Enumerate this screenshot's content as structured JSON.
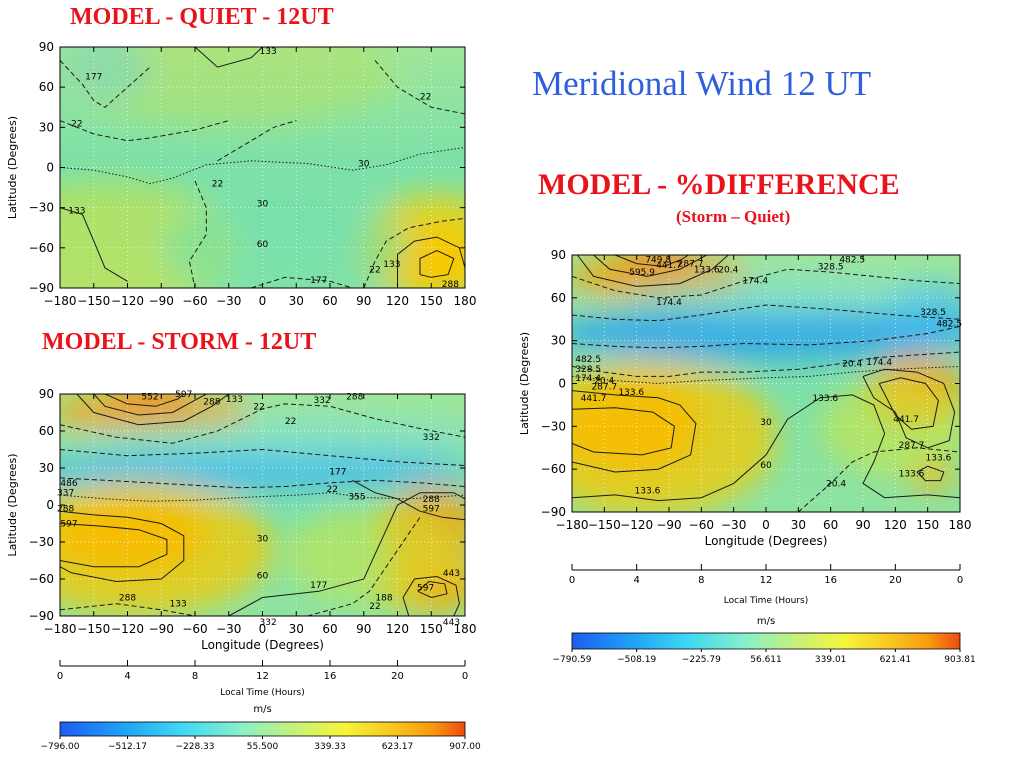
{
  "slide": {
    "main_title": "Meridional Wind   12 UT",
    "quiet_title": "MODEL  -  QUIET  - 12UT",
    "storm_title": "MODEL  -  STORM  - 12UT",
    "diff_title": "MODEL  -  %DIFFERENCE",
    "diff_subtitle": "(Storm – Quiet)"
  },
  "chart_data": [
    {
      "id": "quiet",
      "type": "heatmap",
      "title": "MODEL  -  QUIET  - 12UT",
      "xlabel": "",
      "ylabel": "Latitude (Degrees)",
      "xticks": [
        "−180",
        "−150",
        "−120",
        "−90",
        "−60",
        "−30",
        "0",
        "30",
        "60",
        "90",
        "120",
        "150",
        "180"
      ],
      "yticks": [
        "90",
        "60",
        "30",
        "0",
        "−30",
        "−60",
        "−90"
      ],
      "xlim": [
        -180,
        180
      ],
      "ylim": [
        -90,
        90
      ],
      "contour_labels": [
        {
          "text": "133",
          "lon": 5,
          "lat": 87
        },
        {
          "text": "177",
          "lon": -150,
          "lat": 68
        },
        {
          "text": "22",
          "lon": 145,
          "lat": 53
        },
        {
          "text": "22",
          "lon": -165,
          "lat": 33
        },
        {
          "text": "22",
          "lon": -40,
          "lat": -12
        },
        {
          "text": "133",
          "lon": -165,
          "lat": -32
        },
        {
          "text": "133",
          "lon": 115,
          "lat": -72
        },
        {
          "text": "22",
          "lon": 100,
          "lat": -76
        },
        {
          "text": "177",
          "lon": 50,
          "lat": -84
        },
        {
          "text": "288",
          "lon": 167,
          "lat": -87
        },
        {
          "text": "30",
          "lon": 0,
          "lat": -27
        },
        {
          "text": "60",
          "lon": 0,
          "lat": -57
        },
        {
          "text": "30",
          "lon": 90,
          "lat": 3
        }
      ],
      "axis": {
        "local_time_ticks": [
          "0",
          "4",
          "8",
          "12",
          "16",
          "20",
          "0"
        ],
        "local_time_label": "Local Time (Hours)"
      },
      "colorbar": {
        "unit": "m/s",
        "ticks": [
          "−796.00",
          "−512.17",
          "−228.33",
          "55.500",
          "339.33",
          "623.17",
          "907.00"
        ]
      }
    },
    {
      "id": "storm",
      "type": "heatmap",
      "title": "MODEL  -  STORM  - 12UT",
      "xlabel": "Longitude (Degrees)",
      "ylabel": "Latitude (Degrees)",
      "xticks": [
        "−180",
        "−150",
        "−120",
        "−90",
        "−60",
        "−30",
        "0",
        "30",
        "60",
        "90",
        "120",
        "150",
        "180"
      ],
      "yticks": [
        "90",
        "60",
        "30",
        "0",
        "−30",
        "−60",
        "−90"
      ],
      "xlim": [
        -180,
        180
      ],
      "ylim": [
        -90,
        90
      ],
      "contour_labels": [
        {
          "text": "552",
          "lon": -100,
          "lat": 88
        },
        {
          "text": "597",
          "lon": -70,
          "lat": 90
        },
        {
          "text": "288",
          "lon": -45,
          "lat": 84
        },
        {
          "text": "133",
          "lon": -25,
          "lat": 86
        },
        {
          "text": "22",
          "lon": -3,
          "lat": 80
        },
        {
          "text": "22",
          "lon": 25,
          "lat": 68
        },
        {
          "text": "332",
          "lon": 53,
          "lat": 85
        },
        {
          "text": "288",
          "lon": 82,
          "lat": 88
        },
        {
          "text": "332",
          "lon": 150,
          "lat": 55
        },
        {
          "text": "177",
          "lon": 67,
          "lat": 27
        },
        {
          "text": "22",
          "lon": 62,
          "lat": 13
        },
        {
          "text": "486",
          "lon": -172,
          "lat": 18
        },
        {
          "text": "337",
          "lon": -175,
          "lat": 10
        },
        {
          "text": "288",
          "lon": -175,
          "lat": -3
        },
        {
          "text": "597",
          "lon": -172,
          "lat": -15
        },
        {
          "text": "355",
          "lon": 84,
          "lat": 7
        },
        {
          "text": "288",
          "lon": 150,
          "lat": 5
        },
        {
          "text": "597",
          "lon": 150,
          "lat": -3
        },
        {
          "text": "443",
          "lon": 168,
          "lat": -55
        },
        {
          "text": "177",
          "lon": 50,
          "lat": -65
        },
        {
          "text": "288",
          "lon": -120,
          "lat": -75
        },
        {
          "text": "133",
          "lon": -75,
          "lat": -80
        },
        {
          "text": "332",
          "lon": 5,
          "lat": -95
        },
        {
          "text": "597",
          "lon": 145,
          "lat": -67
        },
        {
          "text": "443",
          "lon": 168,
          "lat": -95
        },
        {
          "text": "22",
          "lon": 100,
          "lat": -82
        },
        {
          "text": "188",
          "lon": 108,
          "lat": -75
        },
        {
          "text": "30",
          "lon": 0,
          "lat": -27
        },
        {
          "text": "60",
          "lon": 0,
          "lat": -57
        }
      ],
      "axis": {
        "local_time_ticks": [
          "0",
          "4",
          "8",
          "12",
          "16",
          "20",
          "0"
        ],
        "local_time_label": "Local Time (Hours)"
      },
      "colorbar": {
        "unit": "m/s",
        "ticks": [
          "−796.00",
          "−512.17",
          "−228.33",
          "55.500",
          "339.33",
          "623.17",
          "907.00"
        ]
      }
    },
    {
      "id": "diff",
      "type": "heatmap",
      "title": "MODEL  -  %DIFFERENCE",
      "subtitle": "(Storm – Quiet)",
      "xlabel": "Longitude (Degrees)",
      "ylabel": "Latitude (Degrees)",
      "xticks": [
        "−180",
        "−150",
        "−120",
        "−90",
        "−60",
        "−30",
        "0",
        "30",
        "60",
        "90",
        "120",
        "150",
        "180"
      ],
      "yticks": [
        "90",
        "60",
        "30",
        "0",
        "−30",
        "−60",
        "−90"
      ],
      "xlim": [
        -180,
        180
      ],
      "ylim": [
        -90,
        90
      ],
      "contour_labels": [
        {
          "text": "749.8",
          "lon": -100,
          "lat": 87
        },
        {
          "text": "595.9",
          "lon": -115,
          "lat": 78
        },
        {
          "text": "441.7",
          "lon": -90,
          "lat": 83
        },
        {
          "text": "287.7",
          "lon": -70,
          "lat": 84
        },
        {
          "text": "133.6",
          "lon": -55,
          "lat": 80
        },
        {
          "text": "20.4",
          "lon": -35,
          "lat": 80
        },
        {
          "text": "174.4",
          "lon": -10,
          "lat": 72
        },
        {
          "text": "328.5",
          "lon": 60,
          "lat": 82
        },
        {
          "text": "482.5",
          "lon": 80,
          "lat": 87
        },
        {
          "text": "328.5",
          "lon": 155,
          "lat": 50
        },
        {
          "text": "482.5",
          "lon": 170,
          "lat": 42
        },
        {
          "text": "174.4",
          "lon": -90,
          "lat": 57
        },
        {
          "text": "482.5",
          "lon": -165,
          "lat": 17
        },
        {
          "text": "328.5",
          "lon": -165,
          "lat": 10
        },
        {
          "text": "174.4",
          "lon": -165,
          "lat": 4
        },
        {
          "text": "20.4",
          "lon": -150,
          "lat": 2
        },
        {
          "text": "287.7",
          "lon": -150,
          "lat": -2
        },
        {
          "text": "441.7",
          "lon": -160,
          "lat": -10
        },
        {
          "text": "133.6",
          "lon": -125,
          "lat": -6
        },
        {
          "text": "20.4",
          "lon": 80,
          "lat": 14
        },
        {
          "text": "174.4",
          "lon": 105,
          "lat": 15
        },
        {
          "text": "133.6",
          "lon": 55,
          "lat": -10
        },
        {
          "text": "441.7",
          "lon": 130,
          "lat": -25
        },
        {
          "text": "287.7",
          "lon": 135,
          "lat": -43
        },
        {
          "text": "133.6",
          "lon": 160,
          "lat": -52
        },
        {
          "text": "133.6",
          "lon": 135,
          "lat": -63
        },
        {
          "text": "133.6",
          "lon": -110,
          "lat": -75
        },
        {
          "text": "20.4",
          "lon": 65,
          "lat": -70
        },
        {
          "text": "30",
          "lon": 0,
          "lat": -27
        },
        {
          "text": "60",
          "lon": 0,
          "lat": -57
        }
      ],
      "axis": {
        "local_time_ticks": [
          "0",
          "4",
          "8",
          "12",
          "16",
          "20",
          "0"
        ],
        "local_time_label": "Local Time (Hours)"
      },
      "colorbar": {
        "unit": "m/s",
        "ticks": [
          "−790.59",
          "−508.19",
          "−225.79",
          "56.611",
          "339.01",
          "621.41",
          "903.81"
        ]
      }
    }
  ]
}
